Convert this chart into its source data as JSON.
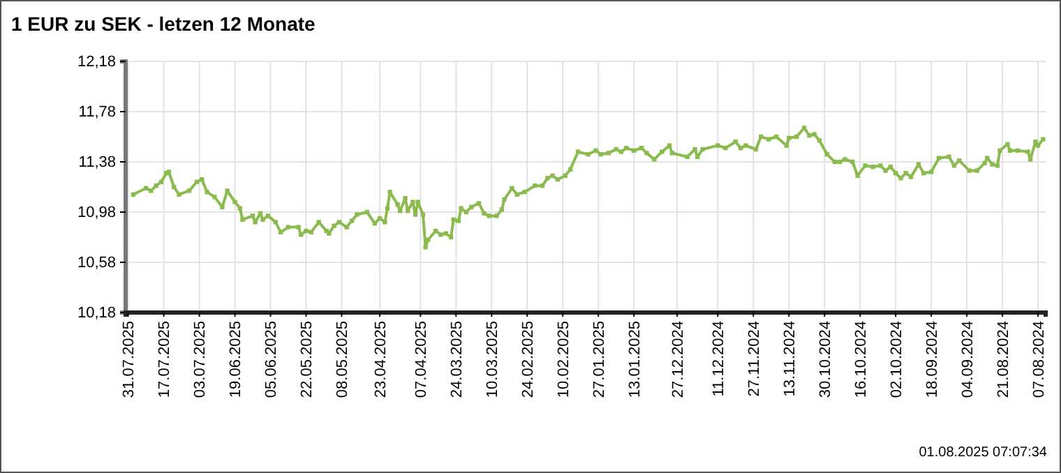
{
  "chart_data": {
    "type": "line",
    "title": "1 EUR zu SEK - letzen 12 Monate",
    "annotations": [
      "01.08.2025 07:07:34"
    ],
    "xlim": [
      "2025-08-01",
      "2024-08-04"
    ],
    "xticks": [
      {
        "value": "2025-07-31",
        "label": "31.07.2025"
      },
      {
        "value": "2025-07-17",
        "label": "17.07.2025"
      },
      {
        "value": "2025-07-03",
        "label": "03.07.2025"
      },
      {
        "value": "2025-06-19",
        "label": "19.06.2025"
      },
      {
        "value": "2025-06-05",
        "label": "05.06.2025"
      },
      {
        "value": "2025-05-22",
        "label": "22.05.2025"
      },
      {
        "value": "2025-05-08",
        "label": "08.05.2025"
      },
      {
        "value": "2025-04-23",
        "label": "23.04.2025"
      },
      {
        "value": "2025-04-07",
        "label": "07.04.2025"
      },
      {
        "value": "2025-03-24",
        "label": "24.03.2025"
      },
      {
        "value": "2025-03-10",
        "label": "10.03.2025"
      },
      {
        "value": "2025-02-24",
        "label": "24.02.2025"
      },
      {
        "value": "2025-02-10",
        "label": "10.02.2025"
      },
      {
        "value": "2025-01-27",
        "label": "27.01.2025"
      },
      {
        "value": "2025-01-13",
        "label": "13.01.2025"
      },
      {
        "value": "2024-12-27",
        "label": "27.12.2024"
      },
      {
        "value": "2024-12-11",
        "label": "11.12.2024"
      },
      {
        "value": "2024-11-27",
        "label": "27.11.2024"
      },
      {
        "value": "2024-11-13",
        "label": "13.11.2024"
      },
      {
        "value": "2024-10-30",
        "label": "30.10.2024"
      },
      {
        "value": "2024-10-16",
        "label": "16.10.2024"
      },
      {
        "value": "2024-10-02",
        "label": "02.10.2024"
      },
      {
        "value": "2024-09-18",
        "label": "18.09.2024"
      },
      {
        "value": "2024-09-04",
        "label": "04.09.2024"
      },
      {
        "value": "2024-08-21",
        "label": "21.08.2024"
      },
      {
        "value": "2024-08-07",
        "label": "07.08.2024"
      }
    ],
    "ylim": [
      10.18,
      12.18
    ],
    "yticks": [
      {
        "value": 10.18,
        "label": "10,18"
      },
      {
        "value": 10.58,
        "label": "10,58"
      },
      {
        "value": 10.98,
        "label": "10,98"
      },
      {
        "value": 11.38,
        "label": "11,38"
      },
      {
        "value": 11.78,
        "label": "11,78"
      },
      {
        "value": 12.18,
        "label": "12,18"
      }
    ],
    "grid": true,
    "marker": "square",
    "line_style": "solid",
    "series": [
      {
        "color": "#8bbb4f",
        "x": [
          "2025-07-29",
          "2025-07-24",
          "2025-07-22",
          "2025-07-20",
          "2025-07-18",
          "2025-07-16",
          "2025-07-15",
          "2025-07-13",
          "2025-07-11",
          "2025-07-07",
          "2025-07-04",
          "2025-07-02",
          "2025-06-30",
          "2025-06-27",
          "2025-06-24",
          "2025-06-22",
          "2025-06-19",
          "2025-06-17",
          "2025-06-16",
          "2025-06-12",
          "2025-06-11",
          "2025-06-09",
          "2025-06-08",
          "2025-06-06",
          "2025-06-03",
          "2025-06-01",
          "2025-05-29",
          "2025-05-25",
          "2025-05-24",
          "2025-05-22",
          "2025-05-20",
          "2025-05-17",
          "2025-05-14",
          "2025-05-13",
          "2025-05-11",
          "2025-05-09",
          "2025-05-06",
          "2025-05-04",
          "2025-05-02",
          "2025-04-28",
          "2025-04-25",
          "2025-04-23",
          "2025-04-21",
          "2025-04-20",
          "2025-04-19",
          "2025-04-16",
          "2025-04-15",
          "2025-04-13",
          "2025-04-12",
          "2025-04-10",
          "2025-04-09",
          "2025-04-08",
          "2025-04-06",
          "2025-04-05",
          "2025-04-04",
          "2025-04-01",
          "2025-03-30",
          "2025-03-28",
          "2025-03-26",
          "2025-03-25",
          "2025-03-23",
          "2025-03-22",
          "2025-03-20",
          "2025-03-18",
          "2025-03-15",
          "2025-03-13",
          "2025-03-11",
          "2025-03-08",
          "2025-03-06",
          "2025-03-05",
          "2025-03-02",
          "2025-02-28",
          "2025-02-25",
          "2025-02-21",
          "2025-02-18",
          "2025-02-16",
          "2025-02-14",
          "2025-02-12",
          "2025-02-09",
          "2025-02-07",
          "2025-02-04",
          "2025-01-31",
          "2025-01-28",
          "2025-01-26",
          "2025-01-23",
          "2025-01-20",
          "2025-01-18",
          "2025-01-16",
          "2025-01-13",
          "2025-01-10",
          "2025-01-08",
          "2025-01-05",
          "2025-01-02",
          "2024-12-30",
          "2024-12-29",
          "2024-12-23",
          "2024-12-20",
          "2024-12-19",
          "2024-12-17",
          "2024-12-11",
          "2024-12-08",
          "2024-12-04",
          "2024-12-02",
          "2024-11-30",
          "2024-11-26",
          "2024-11-24",
          "2024-11-21",
          "2024-11-18",
          "2024-11-14",
          "2024-11-13",
          "2024-11-10",
          "2024-11-07",
          "2024-11-05",
          "2024-11-03",
          "2024-11-01",
          "2024-10-29",
          "2024-10-26",
          "2024-10-24",
          "2024-10-22",
          "2024-10-19",
          "2024-10-17",
          "2024-10-14",
          "2024-10-11",
          "2024-10-08",
          "2024-10-06",
          "2024-10-04",
          "2024-10-02",
          "2024-09-30",
          "2024-09-28",
          "2024-09-26",
          "2024-09-23",
          "2024-09-21",
          "2024-09-18",
          "2024-09-15",
          "2024-09-11",
          "2024-09-09",
          "2024-09-07",
          "2024-09-03",
          "2024-08-31",
          "2024-08-28",
          "2024-08-27",
          "2024-08-25",
          "2024-08-23",
          "2024-08-22",
          "2024-08-19",
          "2024-08-18",
          "2024-08-15",
          "2024-08-11",
          "2024-08-10",
          "2024-08-08",
          "2024-08-07",
          "2024-08-05"
        ],
        "values": [
          11.12,
          11.17,
          11.15,
          11.19,
          11.22,
          11.29,
          11.3,
          11.18,
          11.12,
          11.15,
          11.22,
          11.24,
          11.14,
          11.1,
          11.02,
          11.15,
          11.06,
          11.01,
          10.92,
          10.95,
          10.9,
          10.97,
          10.92,
          10.95,
          10.9,
          10.82,
          10.86,
          10.86,
          10.8,
          10.83,
          10.82,
          10.9,
          10.83,
          10.81,
          10.87,
          10.9,
          10.86,
          10.91,
          10.96,
          10.98,
          10.89,
          10.93,
          10.9,
          11.01,
          11.14,
          11.04,
          10.99,
          11.09,
          10.99,
          11.06,
          10.96,
          11.06,
          10.96,
          10.7,
          10.76,
          10.83,
          10.8,
          10.81,
          10.78,
          10.92,
          10.91,
          11.01,
          10.98,
          11.02,
          11.05,
          10.97,
          10.95,
          10.95,
          11.0,
          11.08,
          11.17,
          11.12,
          11.14,
          11.19,
          11.19,
          11.25,
          11.27,
          11.24,
          11.27,
          11.32,
          11.46,
          11.44,
          11.47,
          11.44,
          11.45,
          11.48,
          11.46,
          11.49,
          11.47,
          11.49,
          11.45,
          11.4,
          11.46,
          11.51,
          11.45,
          11.42,
          11.48,
          11.42,
          11.48,
          11.51,
          11.49,
          11.54,
          11.49,
          11.51,
          11.48,
          11.58,
          11.56,
          11.58,
          11.51,
          11.57,
          11.58,
          11.65,
          11.59,
          11.6,
          11.55,
          11.44,
          11.38,
          11.38,
          11.4,
          11.38,
          11.27,
          11.35,
          11.34,
          11.35,
          11.31,
          11.34,
          11.29,
          11.25,
          11.29,
          11.26,
          11.36,
          11.29,
          11.3,
          11.41,
          11.42,
          11.35,
          11.39,
          11.31,
          11.31,
          11.37,
          11.41,
          11.36,
          11.35,
          11.47,
          11.52,
          11.47,
          11.47,
          11.46,
          11.4,
          11.54,
          11.51,
          11.56
        ]
      }
    ]
  }
}
